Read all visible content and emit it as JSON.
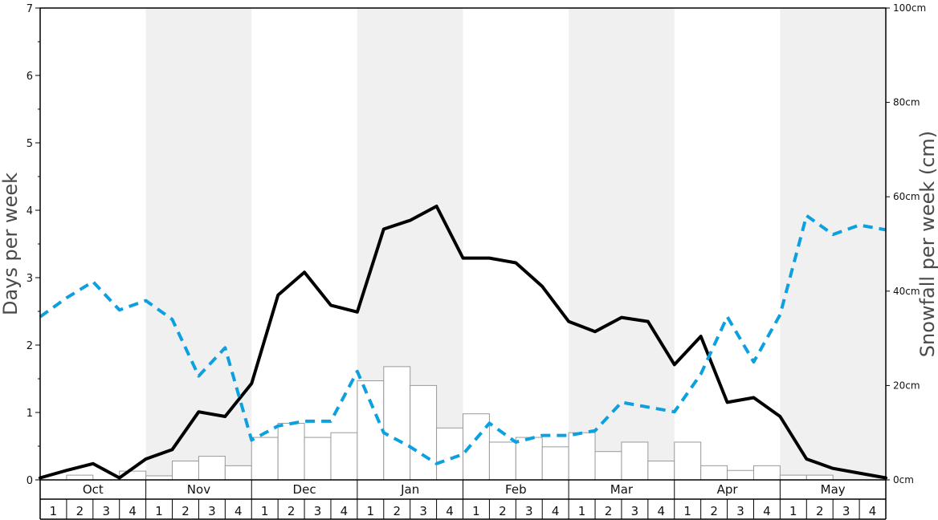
{
  "chart_data": {
    "type": "bar",
    "ylabel_left": "Days per week",
    "ylabel_right": "Snowfall per week (cm)",
    "ylim_left": [
      0,
      7
    ],
    "yticks_left": [
      "0",
      "1",
      "2",
      "3",
      "4",
      "5",
      "6",
      "7"
    ],
    "ylim_right": [
      0,
      100
    ],
    "yticks_right": [
      "0cm",
      "20cm",
      "40cm",
      "60cm",
      "80cm",
      "100cm"
    ],
    "months": [
      "Oct",
      "Nov",
      "Dec",
      "Jan",
      "Feb",
      "Mar",
      "Apr",
      "May"
    ],
    "weeks": [
      "1",
      "2",
      "3",
      "4"
    ],
    "month_shading": [
      "white",
      "grey",
      "white",
      "grey",
      "white",
      "grey",
      "white",
      "grey"
    ],
    "colors": {
      "shade": "#f0f0f0",
      "bar_fill": "#ffffff",
      "bar_stroke": "#999999",
      "snow_days_line": "#000000",
      "dashed_line": "#0ca0e0",
      "axis": "#000000"
    },
    "series": [
      {
        "chart_type": "bar",
        "axis": "left",
        "values": [
          0.0,
          0.07,
          0.0,
          0.13,
          0.06,
          0.28,
          0.35,
          0.21,
          0.63,
          0.84,
          0.63,
          0.7,
          1.47,
          1.68,
          1.4,
          0.77,
          0.98,
          0.56,
          0.63,
          0.49,
          0.7,
          0.42,
          0.56,
          0.28,
          0.56,
          0.21,
          0.14,
          0.21,
          0.07,
          0.07,
          0.0,
          0.0
        ]
      },
      {
        "chart_type": "line",
        "style": "solid",
        "axis": "left",
        "values": [
          0.03,
          0.14,
          0.24,
          0.03,
          0.31,
          0.45,
          1.01,
          0.94,
          1.43,
          2.74,
          3.08,
          2.59,
          2.49,
          3.72,
          3.85,
          4.06,
          3.29,
          3.29,
          3.22,
          2.87,
          2.35,
          2.2,
          2.41,
          2.35,
          1.71,
          2.13,
          1.15,
          1.22,
          0.94,
          0.31,
          0.17,
          0.1,
          0.03
        ]
      },
      {
        "chart_type": "line",
        "style": "dashed",
        "axis": "left",
        "values": [
          2.42,
          2.7,
          2.94,
          2.52,
          2.66,
          2.38,
          1.54,
          1.96,
          0.59,
          0.8,
          0.87,
          0.87,
          1.61,
          0.7,
          0.49,
          0.24,
          0.38,
          0.84,
          0.56,
          0.66,
          0.66,
          0.73,
          1.15,
          1.08,
          1.01,
          1.57,
          2.42,
          1.75,
          2.45,
          3.92,
          3.64,
          3.78,
          3.71
        ]
      }
    ]
  }
}
